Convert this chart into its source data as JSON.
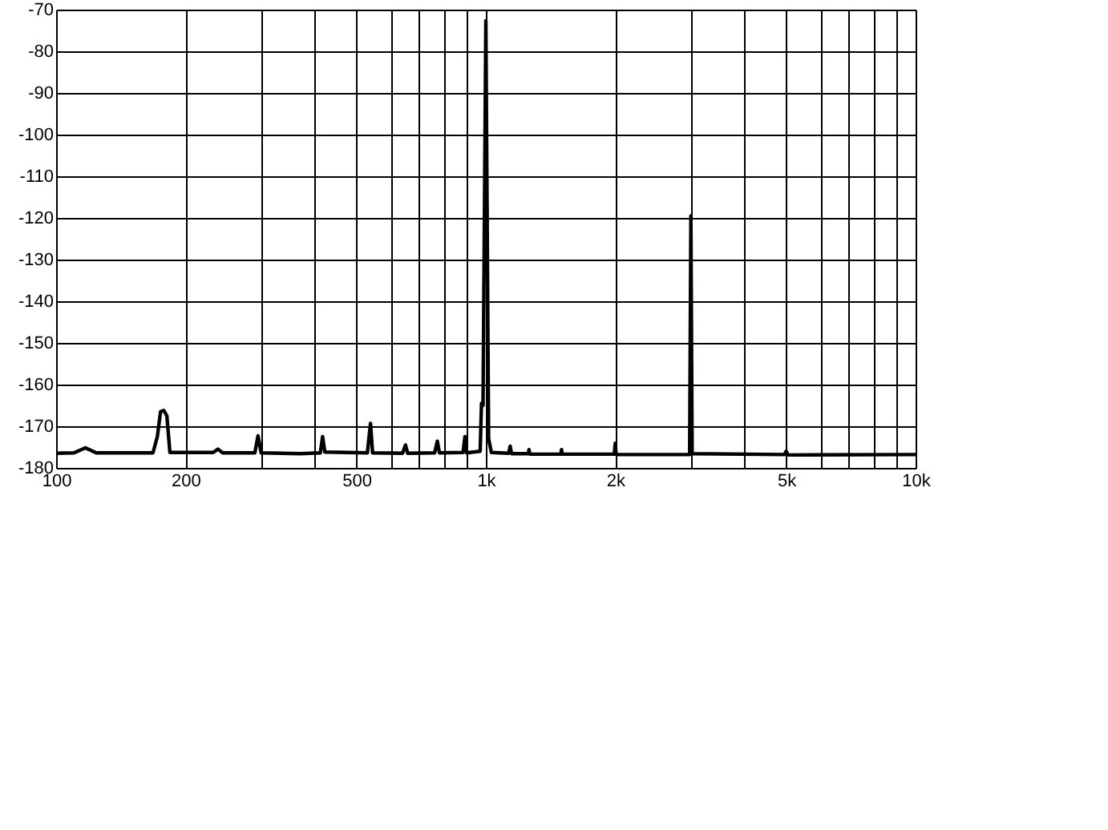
{
  "chart_data": {
    "type": "line",
    "log": "x",
    "grid": true,
    "line_style": "solid",
    "marker": "none",
    "xlim": [
      100,
      10000
    ],
    "ylim": [
      -180,
      -70
    ],
    "xticks": [
      100,
      200,
      {
        "value": 300,
        "label": null
      },
      {
        "value": 400,
        "label": null
      },
      500,
      {
        "value": 600,
        "label": null
      },
      {
        "value": 700,
        "label": null
      },
      {
        "value": 800,
        "label": null
      },
      {
        "value": 900,
        "label": null
      },
      {
        "value": 1000,
        "label": "1k"
      },
      {
        "value": 2000,
        "label": "2k"
      },
      {
        "value": 3000,
        "label": null
      },
      {
        "value": 4000,
        "label": null
      },
      {
        "value": 5000,
        "label": "5k"
      },
      {
        "value": 6000,
        "label": null
      },
      {
        "value": 7000,
        "label": null
      },
      {
        "value": 8000,
        "label": null
      },
      {
        "value": 9000,
        "label": null
      },
      {
        "value": 10000,
        "label": "10k"
      }
    ],
    "yticks": [
      -180,
      -170,
      -160,
      -150,
      -140,
      -130,
      -120,
      -110,
      -100,
      -90,
      -80,
      -70
    ],
    "series": [
      {
        "color": "#000000",
        "x": [
          100,
          110,
          117,
          124,
          168,
          172,
          175,
          178,
          181,
          184,
          232,
          238,
          244,
          290,
          295,
          300,
          370,
          412,
          417,
          422,
          530,
          539,
          545,
          640,
          650,
          658,
          760,
          771,
          780,
          885,
          894,
          902,
          970,
          977,
          985,
          1000,
          1015,
          1030,
          1130,
          1139,
          1148,
          1255,
          1260,
          1266,
          1495,
          1500,
          1506,
          1990,
          2000,
          2010,
          2980,
          3000,
          3020,
          4950,
          5000,
          5050,
          10000
        ],
        "values": [
          -176.5,
          -176.4,
          -175.2,
          -176.4,
          -176.4,
          -172.5,
          -166.5,
          -166.2,
          -167.5,
          -176.3,
          -176.3,
          -175.5,
          -176.4,
          -176.4,
          -172.3,
          -176.4,
          -176.6,
          -176.4,
          -172.5,
          -176.2,
          -176.4,
          -169.3,
          -176.4,
          -176.5,
          -174.5,
          -176.5,
          -176.4,
          -173.6,
          -176.4,
          -176.3,
          -172.5,
          -176.4,
          -176,
          -164.5,
          -165,
          -72.7,
          -173,
          -176.3,
          -176.5,
          -174.8,
          -176.6,
          -176.6,
          -175.6,
          -176.7,
          -176.7,
          -175.6,
          -176.7,
          -176.7,
          -174.1,
          -176.8,
          -176.8,
          -119.5,
          -176.6,
          -176.8,
          -176,
          -176.9,
          -176.8
        ]
      }
    ]
  }
}
